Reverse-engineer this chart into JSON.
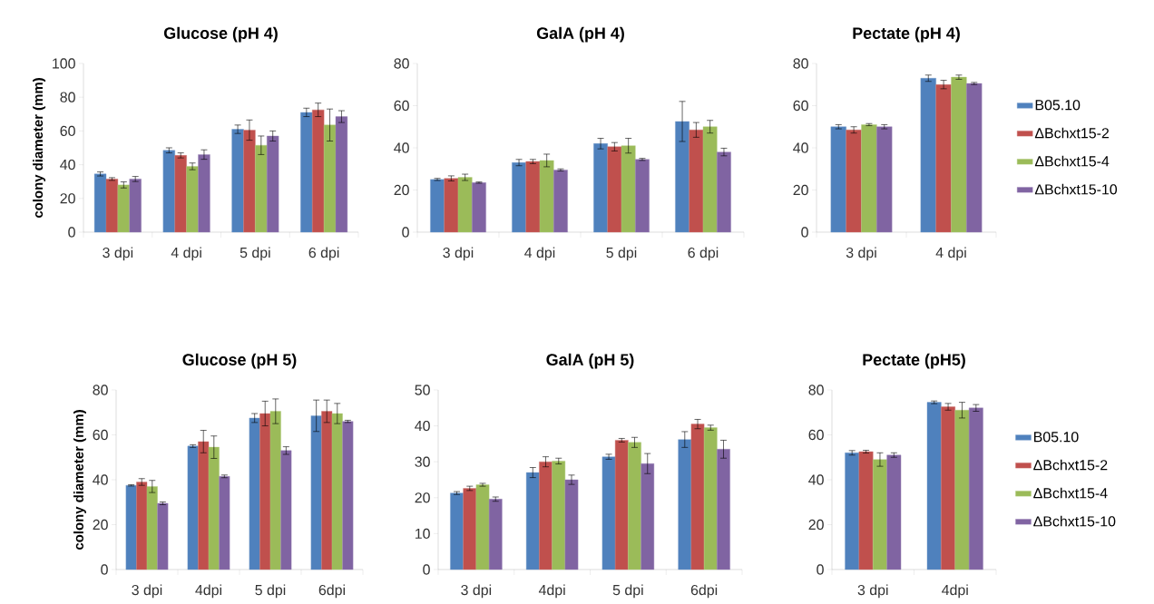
{
  "chart_data": [
    {
      "type": "bar",
      "title": "Glucose (pH 4)",
      "ylabel": "colony diameter (mm)",
      "categories": [
        "3 dpi",
        "4 dpi",
        "5 dpi",
        "6 dpi"
      ],
      "ylim": [
        0,
        100
      ],
      "yticks": [
        0,
        20,
        40,
        60,
        80,
        100
      ],
      "series": [
        {
          "color": "#4f81bd",
          "values": [
            34.5,
            48.5,
            61,
            71
          ],
          "errors": [
            1.2,
            1.5,
            2.5,
            2.5
          ]
        },
        {
          "color": "#c0504d",
          "values": [
            31.5,
            45.5,
            60.5,
            72.5
          ],
          "errors": [
            0.8,
            1.5,
            6,
            4
          ]
        },
        {
          "color": "#9bbb59",
          "values": [
            28,
            39,
            51.5,
            63.5
          ],
          "errors": [
            1.8,
            2,
            5.5,
            9.5
          ]
        },
        {
          "color": "#8064a2",
          "values": [
            31.5,
            46,
            57,
            68.5
          ],
          "errors": [
            1.5,
            2.8,
            3,
            3.5
          ]
        }
      ]
    },
    {
      "type": "bar",
      "title": "GalA (pH 4)",
      "categories": [
        "3 dpi",
        "4 dpi",
        "5 dpi",
        "6 dpi"
      ],
      "ylim": [
        0,
        80
      ],
      "yticks": [
        0,
        20,
        40,
        60,
        80
      ],
      "series": [
        {
          "color": "#4f81bd",
          "values": [
            25,
            33,
            42,
            52.5
          ],
          "errors": [
            0.5,
            1.5,
            2.5,
            9.5
          ]
        },
        {
          "color": "#c0504d",
          "values": [
            25.5,
            33.5,
            40.5,
            48.5
          ],
          "errors": [
            1.2,
            1,
            2,
            3.5
          ]
        },
        {
          "color": "#9bbb59",
          "values": [
            26,
            34,
            41,
            50
          ],
          "errors": [
            1.5,
            3,
            3.5,
            3
          ]
        },
        {
          "color": "#8064a2",
          "values": [
            23.5,
            29.5,
            34.5,
            38
          ],
          "errors": [
            0.3,
            0.5,
            0.5,
            1.8
          ]
        }
      ]
    },
    {
      "type": "bar",
      "title": "Pectate (pH 4)",
      "categories": [
        "3 dpi",
        "4 dpi"
      ],
      "ylim": [
        0,
        80
      ],
      "yticks": [
        0,
        20,
        40,
        60,
        80
      ],
      "legend": "right",
      "series": [
        {
          "name": "B05.10",
          "color": "#4f81bd",
          "values": [
            50,
            73
          ],
          "errors": [
            1,
            1.5
          ]
        },
        {
          "name": "ΔBchxt15-2",
          "color": "#c0504d",
          "values": [
            48.5,
            70
          ],
          "errors": [
            1.5,
            2
          ]
        },
        {
          "name": "ΔBchxt15-4",
          "color": "#9bbb59",
          "values": [
            51,
            73.5
          ],
          "errors": [
            0.5,
            1
          ]
        },
        {
          "name": "ΔBchxt15-10",
          "color": "#8064a2",
          "values": [
            50,
            70.5
          ],
          "errors": [
            1,
            0.5
          ]
        }
      ]
    },
    {
      "type": "bar",
      "title": "Glucose (pH 5)",
      "ylabel": "colony diameter (mm)",
      "categories": [
        "3 dpi",
        "4dpi",
        "5 dpi",
        "6dpi"
      ],
      "ylim": [
        0,
        80
      ],
      "yticks": [
        0,
        20,
        40,
        60,
        80
      ],
      "series": [
        {
          "color": "#4f81bd",
          "values": [
            37.5,
            55,
            67.5,
            68.5
          ],
          "errors": [
            0.3,
            0.6,
            2,
            7
          ]
        },
        {
          "color": "#c0504d",
          "values": [
            39,
            57,
            69.5,
            70.5
          ],
          "errors": [
            1.5,
            5,
            5.5,
            5
          ]
        },
        {
          "color": "#9bbb59",
          "values": [
            37,
            54.5,
            70.5,
            69.5
          ],
          "errors": [
            2.7,
            5,
            5.5,
            4.5
          ]
        },
        {
          "color": "#8064a2",
          "values": [
            29.5,
            41.5,
            53,
            66
          ],
          "errors": [
            0.6,
            0.6,
            1.7,
            0.5
          ]
        }
      ]
    },
    {
      "type": "bar",
      "title": "GalA (pH 5)",
      "categories": [
        "3 dpi",
        "4dpi",
        "5 dpi",
        "6dpi"
      ],
      "ylim": [
        0,
        50
      ],
      "yticks": [
        0,
        10,
        20,
        30,
        40,
        50
      ],
      "series": [
        {
          "color": "#4f81bd",
          "values": [
            21.3,
            27,
            31.4,
            36.2
          ],
          "errors": [
            0.4,
            1.4,
            0.7,
            2.2
          ]
        },
        {
          "color": "#c0504d",
          "values": [
            22.6,
            30,
            36,
            40.5
          ],
          "errors": [
            0.6,
            1.4,
            0.5,
            1.3
          ]
        },
        {
          "color": "#9bbb59",
          "values": [
            23.6,
            30.2,
            35.4,
            39.5
          ],
          "errors": [
            0.4,
            0.8,
            1.4,
            0.7
          ]
        },
        {
          "color": "#8064a2",
          "values": [
            19.6,
            25,
            29.5,
            33.5
          ],
          "errors": [
            0.6,
            1.3,
            2.8,
            2.5
          ]
        }
      ]
    },
    {
      "type": "bar",
      "title": "Pectate (pH5)",
      "categories": [
        "3 dpi",
        "4dpi"
      ],
      "ylim": [
        0,
        80
      ],
      "yticks": [
        0,
        20,
        40,
        60,
        80
      ],
      "legend": "right",
      "series": [
        {
          "name": "B05.10",
          "color": "#4f81bd",
          "values": [
            52,
            74.5
          ],
          "errors": [
            1,
            0.6
          ]
        },
        {
          "name": "ΔBchxt15-2",
          "color": "#c0504d",
          "values": [
            52.5,
            72.5
          ],
          "errors": [
            0.6,
            1.5
          ]
        },
        {
          "name": "ΔBchxt15-4",
          "color": "#9bbb59",
          "values": [
            49,
            71
          ],
          "errors": [
            3,
            3.5
          ]
        },
        {
          "name": "ΔBchxt15-10",
          "color": "#8064a2",
          "values": [
            51,
            72
          ],
          "errors": [
            1,
            1.5
          ]
        }
      ]
    }
  ]
}
